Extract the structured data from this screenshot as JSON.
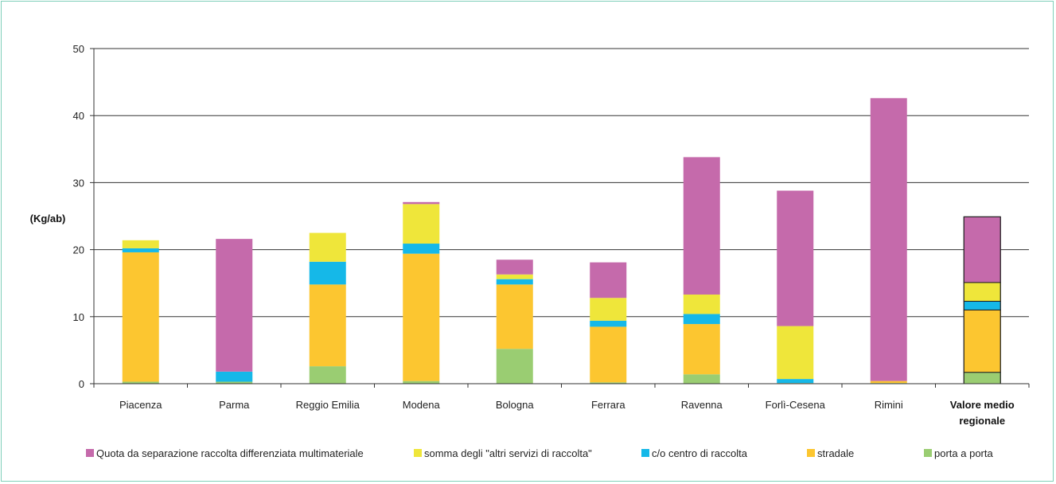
{
  "chart_data": {
    "type": "bar",
    "stacked": true,
    "ylabel": "(Kg/ab)",
    "ylim": [
      0,
      50
    ],
    "yticks": [
      0,
      10,
      20,
      30,
      40,
      50
    ],
    "grid": true,
    "legend_position": "bottom",
    "categories": [
      "Piacenza",
      "Parma",
      "Reggio Emilia",
      "Modena",
      "Bologna",
      "Ferrara",
      "Ravenna",
      "Forlì-Cesena",
      "Rimini",
      "Valore medio regionale"
    ],
    "highlight_category": "Valore medio regionale",
    "series": [
      {
        "name": "porta a porta",
        "color": "#9acd72",
        "values": [
          0.3,
          0.3,
          2.6,
          0.4,
          5.2,
          0.2,
          1.4,
          0.1,
          0.1,
          1.7
        ]
      },
      {
        "name": "stradale",
        "color": "#fcc630",
        "values": [
          19.3,
          0.0,
          12.2,
          19.0,
          9.6,
          8.3,
          7.5,
          0.0,
          0.3,
          9.3
        ]
      },
      {
        "name": "c/o centro di raccolta",
        "color": "#15b8e8",
        "values": [
          0.6,
          1.5,
          3.4,
          1.5,
          0.8,
          0.9,
          1.5,
          0.6,
          0.0,
          1.3
        ]
      },
      {
        "name": "somma degli \"altri servizi di raccolta\"",
        "color": "#efe63a",
        "values": [
          1.2,
          0.0,
          4.3,
          5.9,
          0.7,
          3.4,
          2.9,
          7.9,
          0.0,
          2.8
        ]
      },
      {
        "name": "Quota da separazione raccolta differenziata multimateriale",
        "color": "#c56aab",
        "values": [
          0.0,
          19.8,
          0.0,
          0.3,
          2.2,
          5.3,
          20.5,
          20.2,
          42.2,
          9.8
        ]
      }
    ],
    "legend_order": [
      "Quota da separazione raccolta differenziata multimateriale",
      "somma degli \"altri servizi di raccolta\"",
      "c/o centro di raccolta",
      "stradale",
      "porta a porta"
    ]
  }
}
